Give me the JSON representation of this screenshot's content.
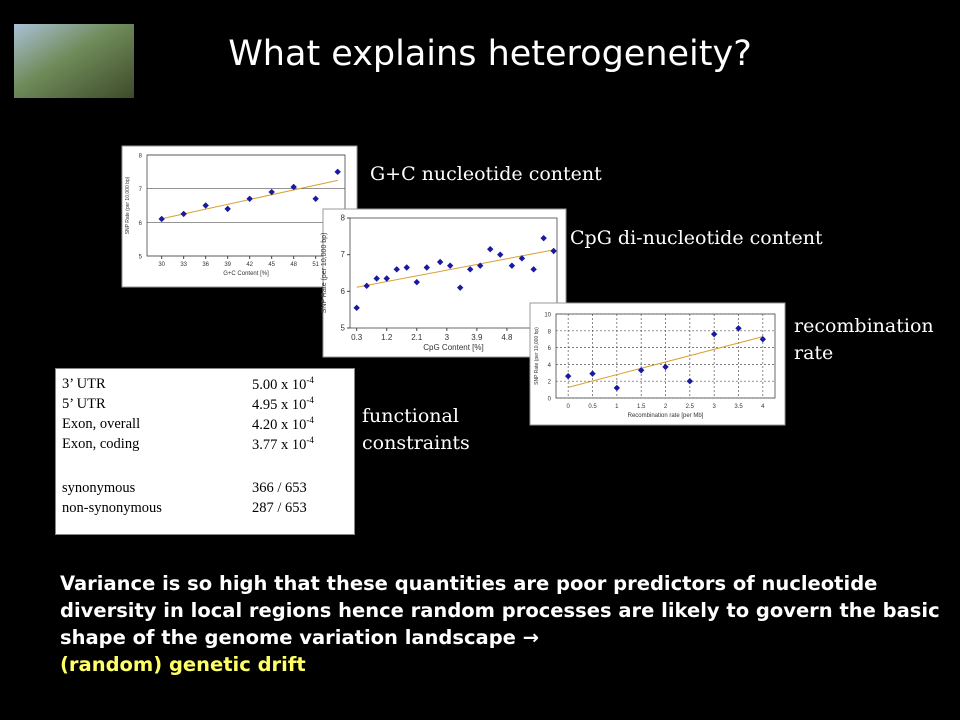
{
  "title": "What explains heterogeneity?",
  "captions": [
    "G+C nucleotide content",
    "CpG di-nucleotide content",
    "recombination rate",
    "functional constraints"
  ],
  "charts": [
    {
      "type": "scatter",
      "x_label": "G+C Content [%]",
      "y_label": "SNP Rate (per 10,000 bp)",
      "xlim": [
        28,
        55
      ],
      "ylim": [
        5,
        8
      ],
      "xticks": [
        30,
        33,
        36,
        39,
        42,
        45,
        48,
        51
      ],
      "yticks": [
        5,
        6,
        7,
        8
      ],
      "x": [
        30,
        33,
        36,
        39,
        42,
        45,
        48,
        51,
        54
      ],
      "values": [
        6.1,
        6.25,
        6.5,
        6.4,
        6.7,
        6.9,
        7.05,
        6.7,
        7.5
      ],
      "color": "#1a1aa0",
      "trend_color": "#d9a030",
      "grid": "y"
    },
    {
      "type": "scatter",
      "x_label": "CpG Content [%]",
      "y_label": "SNP Rate (per 10,000 bp)",
      "xlim": [
        0.1,
        6.3
      ],
      "ylim": [
        5,
        8
      ],
      "xticks": [
        0.3,
        1.2,
        2.1,
        3,
        3.9,
        4.8
      ],
      "yticks": [
        5,
        6,
        7,
        8
      ],
      "x": [
        0.3,
        0.6,
        0.9,
        1.2,
        1.5,
        1.8,
        2.1,
        2.4,
        2.8,
        3.1,
        3.4,
        3.7,
        4.0,
        4.3,
        4.6,
        4.95,
        5.25,
        5.6,
        5.9,
        6.2
      ],
      "values": [
        5.55,
        6.15,
        6.35,
        6.35,
        6.6,
        6.65,
        6.25,
        6.65,
        6.8,
        6.7,
        6.1,
        6.6,
        6.7,
        7.15,
        7.0,
        6.7,
        6.9,
        6.6,
        7.45,
        7.1
      ],
      "color": "#1a1aa0",
      "trend_color": "#d9a030",
      "grid": "none"
    },
    {
      "type": "scatter",
      "x_label": "Recombination rate [per Mb]",
      "y_label": "SNP Rate (per 10,000 bp)",
      "xlim": [
        -0.25,
        4.25
      ],
      "ylim": [
        0,
        10
      ],
      "xticks": [
        0,
        0.5,
        1,
        1.5,
        2,
        2.5,
        3,
        3.5,
        4
      ],
      "yticks": [
        0,
        2,
        4,
        6,
        8,
        10
      ],
      "x": [
        0,
        0.5,
        1,
        1.5,
        2,
        2.5,
        3,
        3.5,
        4
      ],
      "values": [
        2.6,
        2.9,
        1.2,
        3.3,
        3.7,
        2.0,
        7.6,
        8.3,
        7.0
      ],
      "color": "#1a1aa0",
      "trend_color": "#d9a030",
      "grid": "both"
    }
  ],
  "table": {
    "rows": [
      [
        "3’ UTR",
        {
          "mantissa": "5.00 x 10",
          "exponent": "-4"
        }
      ],
      [
        "5’ UTR",
        {
          "mantissa": "4.95 x 10",
          "exponent": "-4"
        }
      ],
      [
        "Exon, overall",
        {
          "mantissa": "4.20 x 10",
          "exponent": "-4"
        }
      ],
      [
        "Exon, coding",
        {
          "mantissa": "3.77 x 10",
          "exponent": "-4"
        }
      ],
      [
        "synonymous",
        "366 / 653"
      ],
      [
        "non-synonymous",
        "287 / 653"
      ]
    ]
  },
  "body": {
    "text": "Variance is so high that these quantities are poor predictors of nucleotide diversity in local regions hence random processes are likely to govern the basic shape of the genome variation landscape →",
    "highlight": "(random) genetic drift"
  }
}
